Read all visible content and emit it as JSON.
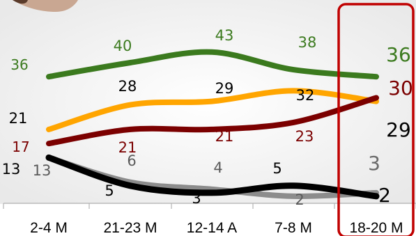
{
  "chart_data": {
    "type": "line",
    "categories": [
      "2-4 M",
      "21-23 M",
      "12-14 A",
      "7-8 M",
      "18-20 M"
    ],
    "ylim": [
      0,
      50
    ],
    "grid": false,
    "legend": "none",
    "highlight_category": "18-20 M",
    "series": [
      {
        "color": "#3b7a1e",
        "values": [
          36,
          40,
          43,
          38,
          36
        ],
        "labels": [
          "36",
          "40",
          "43",
          "38",
          "36"
        ]
      },
      {
        "color": "#ffa500",
        "values": [
          21,
          28,
          29,
          32,
          29
        ],
        "labels": [
          "21",
          "28",
          "29",
          "32",
          "29"
        ]
      },
      {
        "color": "#7b0000",
        "values": [
          17,
          21,
          21,
          23,
          30
        ],
        "labels": [
          "17",
          "21",
          "21",
          "23",
          "30"
        ]
      },
      {
        "color": "#8c8c8c",
        "values": [
          13,
          6,
          4,
          2,
          3
        ],
        "labels": [
          "13",
          "6",
          "4",
          "2",
          "3"
        ]
      },
      {
        "color": "#000000",
        "values": [
          13,
          5,
          3,
          5,
          2
        ],
        "labels": [
          "13",
          "5",
          "3",
          "5",
          "2"
        ]
      }
    ]
  }
}
